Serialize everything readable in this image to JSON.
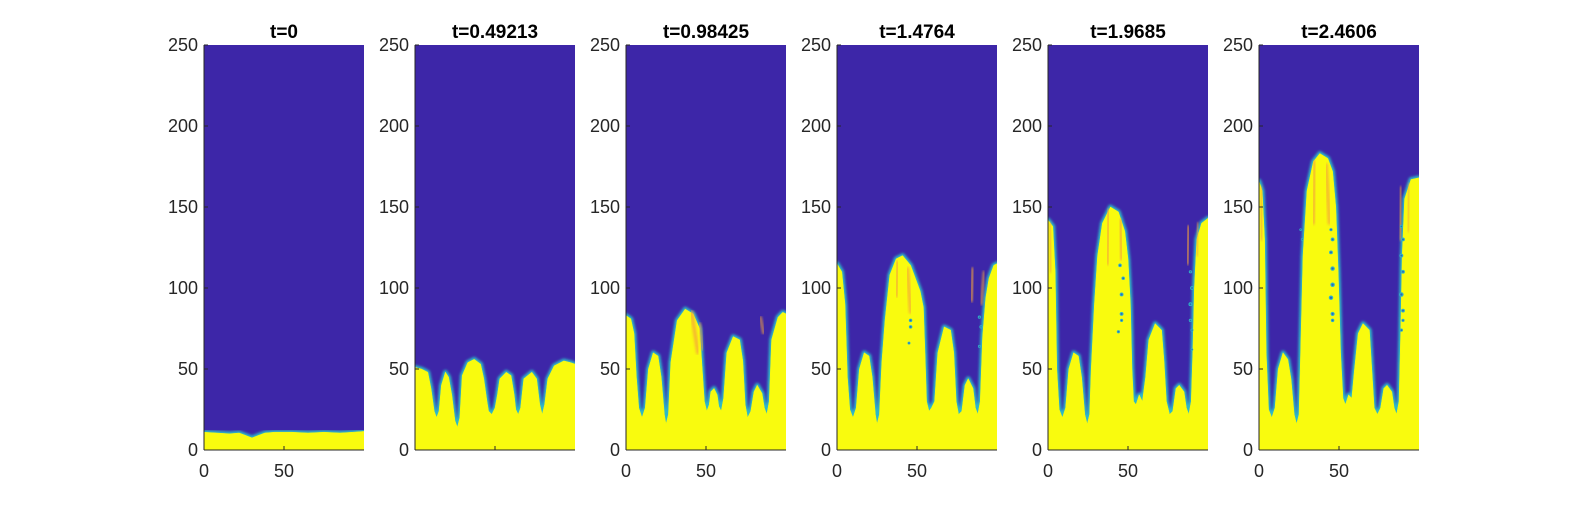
{
  "figure": {
    "colors": {
      "background_fluid": "#3d26a8",
      "dense_fluid": "#f9fb0e",
      "interface": "#2db9c7",
      "inner_streak": "#f5a53a",
      "axis_line": "#262626"
    }
  },
  "chart_data": [
    {
      "type": "heatmap",
      "title": "t=0",
      "xlim": [
        0,
        100
      ],
      "ylim": [
        0,
        250
      ],
      "xticks": [
        0,
        50
      ],
      "yticks": [
        0,
        50,
        100,
        150,
        200,
        250
      ],
      "show_xticklabels": [
        "0",
        "50"
      ],
      "show_yticklabels": [
        "0",
        "50",
        "100",
        "150",
        "200",
        "250"
      ],
      "interface": [
        [
          0,
          11
        ],
        [
          8,
          10.5
        ],
        [
          16,
          10
        ],
        [
          22,
          10.5
        ],
        [
          26,
          9
        ],
        [
          30,
          7.5
        ],
        [
          34,
          9
        ],
        [
          38,
          10.5
        ],
        [
          44,
          11
        ],
        [
          55,
          11
        ],
        [
          65,
          10.5
        ],
        [
          75,
          11
        ],
        [
          85,
          10.5
        ],
        [
          93,
          11
        ],
        [
          100,
          11.5
        ]
      ],
      "fingers": [],
      "drops": []
    },
    {
      "type": "heatmap",
      "title": "t=0.49213",
      "xlim": [
        0,
        100
      ],
      "ylim": [
        0,
        250
      ],
      "xticks": [
        0,
        50
      ],
      "yticks": [
        0,
        50,
        100,
        150,
        200,
        250
      ],
      "show_xticklabels": [],
      "show_yticklabels": [
        "0",
        "50",
        "100",
        "150",
        "200",
        "250"
      ],
      "interface": [
        [
          0,
          51
        ],
        [
          4,
          50
        ],
        [
          8,
          48
        ],
        [
          10,
          38
        ],
        [
          12,
          24
        ],
        [
          13.5,
          20
        ],
        [
          15,
          24
        ],
        [
          16.5,
          40
        ],
        [
          19,
          48
        ],
        [
          21,
          45
        ],
        [
          23,
          34
        ],
        [
          25,
          18
        ],
        [
          26.5,
          14
        ],
        [
          28,
          20
        ],
        [
          29.5,
          46
        ],
        [
          33,
          54
        ],
        [
          37,
          56
        ],
        [
          41,
          53
        ],
        [
          43,
          44
        ],
        [
          45,
          30
        ],
        [
          46,
          24
        ],
        [
          48,
          22
        ],
        [
          50,
          26
        ],
        [
          51.5,
          34
        ],
        [
          53,
          44
        ],
        [
          57,
          48
        ],
        [
          60,
          46
        ],
        [
          62,
          34
        ],
        [
          63,
          25
        ],
        [
          64.5,
          22
        ],
        [
          66,
          26
        ],
        [
          68,
          44
        ],
        [
          73,
          48
        ],
        [
          76,
          44
        ],
        [
          78,
          28
        ],
        [
          79.5,
          22
        ],
        [
          81,
          28
        ],
        [
          83,
          44
        ],
        [
          87,
          52
        ],
        [
          93,
          55
        ],
        [
          97,
          54
        ],
        [
          100,
          53
        ]
      ],
      "fingers": [],
      "drops": []
    },
    {
      "type": "heatmap",
      "title": "t=0.98425",
      "xlim": [
        0,
        100
      ],
      "ylim": [
        0,
        250
      ],
      "xticks": [
        0,
        50
      ],
      "yticks": [
        0,
        50,
        100,
        150,
        200,
        250
      ],
      "show_xticklabels": [
        "0",
        "50"
      ],
      "show_yticklabels": [
        "0",
        "50",
        "100",
        "150",
        "200",
        "250"
      ],
      "interface": [
        [
          0,
          83
        ],
        [
          3,
          81
        ],
        [
          5,
          72
        ],
        [
          6.5,
          45
        ],
        [
          8,
          26
        ],
        [
          10,
          20
        ],
        [
          12,
          26
        ],
        [
          14,
          50
        ],
        [
          17,
          60
        ],
        [
          20,
          58
        ],
        [
          22,
          45
        ],
        [
          24,
          22
        ],
        [
          25,
          16
        ],
        [
          26.5,
          22
        ],
        [
          28,
          54
        ],
        [
          32,
          80
        ],
        [
          37,
          87
        ],
        [
          42,
          84
        ],
        [
          46,
          75
        ],
        [
          47.5,
          52
        ],
        [
          49,
          30
        ],
        [
          50.5,
          24
        ],
        [
          52,
          28
        ],
        [
          53,
          36
        ],
        [
          55,
          38
        ],
        [
          57,
          34
        ],
        [
          58,
          27
        ],
        [
          59.5,
          24
        ],
        [
          61,
          32
        ],
        [
          63,
          60
        ],
        [
          67,
          70
        ],
        [
          71,
          68
        ],
        [
          73,
          55
        ],
        [
          74.5,
          28
        ],
        [
          76,
          20
        ],
        [
          78,
          24
        ],
        [
          80,
          36
        ],
        [
          82,
          40
        ],
        [
          85,
          35
        ],
        [
          86.5,
          26
        ],
        [
          88,
          22
        ],
        [
          89.5,
          30
        ],
        [
          91,
          68
        ],
        [
          95,
          82
        ],
        [
          98,
          85
        ],
        [
          100,
          84
        ]
      ],
      "fingers": [
        [
          41,
          85,
          45,
          60,
          1.8
        ],
        [
          46,
          78,
          48,
          62,
          1.2
        ],
        [
          84,
          82,
          86,
          72,
          1.2
        ]
      ],
      "drops": []
    },
    {
      "type": "heatmap",
      "title": "t=1.4764",
      "xlim": [
        0,
        100
      ],
      "ylim": [
        0,
        250
      ],
      "xticks": [
        0,
        50
      ],
      "yticks": [
        0,
        50,
        100,
        150,
        200,
        250
      ],
      "show_xticklabels": [
        "0",
        "50"
      ],
      "show_yticklabels": [
        "0",
        "50",
        "100",
        "150",
        "200",
        "250"
      ],
      "interface": [
        [
          0,
          115
        ],
        [
          3,
          110
        ],
        [
          5,
          90
        ],
        [
          6.5,
          45
        ],
        [
          8,
          25
        ],
        [
          10,
          20
        ],
        [
          12,
          26
        ],
        [
          14,
          50
        ],
        [
          17,
          60
        ],
        [
          20,
          58
        ],
        [
          22,
          45
        ],
        [
          24,
          22
        ],
        [
          25,
          16
        ],
        [
          26.5,
          22
        ],
        [
          28,
          54
        ],
        [
          30,
          80
        ],
        [
          33,
          108
        ],
        [
          37,
          118
        ],
        [
          41,
          120
        ],
        [
          46,
          114
        ],
        [
          49,
          106
        ],
        [
          52,
          98
        ],
        [
          54,
          88
        ],
        [
          55,
          60
        ],
        [
          56,
          30
        ],
        [
          57.5,
          24
        ],
        [
          59,
          26
        ],
        [
          61,
          30
        ],
        [
          63,
          60
        ],
        [
          67,
          76
        ],
        [
          71,
          74
        ],
        [
          73,
          60
        ],
        [
          74.5,
          30
        ],
        [
          76,
          22
        ],
        [
          78,
          24
        ],
        [
          80,
          40
        ],
        [
          82,
          44
        ],
        [
          85,
          38
        ],
        [
          86.5,
          26
        ],
        [
          88,
          22
        ],
        [
          89.5,
          30
        ],
        [
          91,
          70
        ],
        [
          93,
          94
        ],
        [
          95,
          106
        ],
        [
          98,
          114
        ],
        [
          100,
          115
        ]
      ],
      "fingers": [
        [
          38,
          116,
          37,
          95,
          1.6
        ],
        [
          44,
          112,
          46,
          85,
          1.6
        ],
        [
          85,
          112,
          84,
          92,
          1.4
        ],
        [
          92,
          110,
          90,
          90,
          1.2
        ]
      ],
      "drops": [
        [
          46,
          80,
          1.1
        ],
        [
          46,
          76,
          1.1
        ],
        [
          45,
          66,
          0.9
        ],
        [
          89,
          82,
          1.0
        ],
        [
          90,
          76,
          1.0
        ],
        [
          89,
          64,
          0.9
        ]
      ]
    },
    {
      "type": "heatmap",
      "title": "t=1.9685",
      "xlim": [
        0,
        100
      ],
      "ylim": [
        0,
        250
      ],
      "xticks": [
        0,
        50
      ],
      "yticks": [
        0,
        50,
        100,
        150,
        200,
        250
      ],
      "show_xticklabels": [
        "0",
        "50"
      ],
      "show_yticklabels": [
        "0",
        "50",
        "100",
        "150",
        "200",
        "250"
      ],
      "interface": [
        [
          0,
          142
        ],
        [
          3,
          138
        ],
        [
          4.5,
          110
        ],
        [
          5.5,
          50
        ],
        [
          7,
          25
        ],
        [
          9,
          20
        ],
        [
          11,
          26
        ],
        [
          13,
          50
        ],
        [
          16,
          60
        ],
        [
          19,
          58
        ],
        [
          21,
          45
        ],
        [
          23,
          22
        ],
        [
          24.5,
          16
        ],
        [
          26,
          22
        ],
        [
          27,
          50
        ],
        [
          29,
          90
        ],
        [
          31,
          120
        ],
        [
          34,
          140
        ],
        [
          39,
          150
        ],
        [
          44,
          147
        ],
        [
          48,
          135
        ],
        [
          50,
          118
        ],
        [
          51.5,
          90
        ],
        [
          52.5,
          50
        ],
        [
          53.5,
          30
        ],
        [
          55,
          28
        ],
        [
          57,
          34
        ],
        [
          59,
          30
        ],
        [
          61,
          45
        ],
        [
          63,
          68
        ],
        [
          67,
          78
        ],
        [
          71,
          74
        ],
        [
          72.5,
          55
        ],
        [
          74,
          30
        ],
        [
          76,
          22
        ],
        [
          78,
          24
        ],
        [
          80,
          38
        ],
        [
          82,
          40
        ],
        [
          85,
          36
        ],
        [
          86.5,
          26
        ],
        [
          88,
          22
        ],
        [
          89.5,
          30
        ],
        [
          90.5,
          60
        ],
        [
          91.5,
          100
        ],
        [
          93,
          130
        ],
        [
          96,
          140
        ],
        [
          100,
          143
        ]
      ],
      "fingers": [
        [
          38,
          148,
          37,
          115,
          1.6
        ],
        [
          45,
          142,
          46,
          118,
          1.6
        ],
        [
          1,
          140,
          2,
          110,
          1.2
        ],
        [
          88,
          138,
          87,
          115,
          1.4
        ],
        [
          94,
          140,
          93,
          120,
          1.2
        ]
      ],
      "drops": [
        [
          45,
          114,
          1.1
        ],
        [
          47,
          106,
          1.1
        ],
        [
          46,
          96,
          1.2
        ],
        [
          46,
          84,
          1.2
        ],
        [
          46,
          80,
          1.0
        ],
        [
          44,
          73,
          1.0
        ],
        [
          89,
          110,
          1.0
        ],
        [
          90,
          100,
          1.2
        ],
        [
          89,
          90,
          1.2
        ],
        [
          89,
          80,
          1.0
        ],
        [
          90,
          74,
          0.9
        ],
        [
          90,
          62,
          0.8
        ]
      ]
    },
    {
      "type": "heatmap",
      "title": "t=2.4606",
      "xlim": [
        0,
        100
      ],
      "ylim": [
        0,
        250
      ],
      "xticks": [
        0,
        50
      ],
      "yticks": [
        0,
        50,
        100,
        150,
        200,
        250
      ],
      "show_xticklabels": [
        "0",
        "50"
      ],
      "show_yticklabels": [
        "0",
        "50",
        "100",
        "150",
        "200",
        "250"
      ],
      "interface": [
        [
          0,
          166
        ],
        [
          2,
          160
        ],
        [
          3.5,
          130
        ],
        [
          4.5,
          60
        ],
        [
          6,
          25
        ],
        [
          8,
          20
        ],
        [
          10,
          26
        ],
        [
          12,
          50
        ],
        [
          15,
          60
        ],
        [
          18,
          56
        ],
        [
          20,
          44
        ],
        [
          22,
          22
        ],
        [
          23.5,
          16
        ],
        [
          25,
          22
        ],
        [
          26,
          60
        ],
        [
          27.5,
          120
        ],
        [
          30,
          160
        ],
        [
          34,
          178
        ],
        [
          38,
          183
        ],
        [
          43,
          180
        ],
        [
          46,
          172
        ],
        [
          48,
          150
        ],
        [
          49.5,
          110
        ],
        [
          51,
          60
        ],
        [
          52.5,
          32
        ],
        [
          54,
          28
        ],
        [
          56,
          34
        ],
        [
          58,
          32
        ],
        [
          59.5,
          48
        ],
        [
          62,
          72
        ],
        [
          65,
          78
        ],
        [
          69,
          74
        ],
        [
          70.5,
          50
        ],
        [
          72,
          26
        ],
        [
          74,
          22
        ],
        [
          76,
          26
        ],
        [
          78,
          38
        ],
        [
          80,
          40
        ],
        [
          83,
          36
        ],
        [
          84.5,
          26
        ],
        [
          86,
          22
        ],
        [
          87.5,
          30
        ],
        [
          88.5,
          70
        ],
        [
          89.5,
          120
        ],
        [
          91,
          155
        ],
        [
          95,
          167
        ],
        [
          100,
          168
        ]
      ],
      "fingers": [
        [
          1,
          162,
          2,
          130,
          1.4
        ],
        [
          35,
          178,
          34,
          140,
          1.6
        ],
        [
          42,
          176,
          44,
          140,
          1.6
        ],
        [
          89,
          162,
          88,
          130,
          1.4
        ],
        [
          94,
          164,
          93,
          135,
          1.2
        ]
      ],
      "drops": [
        [
          26,
          136,
          0.8
        ],
        [
          27,
          130,
          0.8
        ],
        [
          45,
          136,
          1.0
        ],
        [
          46,
          130,
          1.2
        ],
        [
          45,
          122,
          1.2
        ],
        [
          46,
          112,
          1.4
        ],
        [
          46,
          102,
          1.4
        ],
        [
          45,
          94,
          1.4
        ],
        [
          46,
          84,
          1.3
        ],
        [
          46,
          80,
          1.1
        ],
        [
          89,
          138,
          1.0
        ],
        [
          90,
          130,
          1.2
        ],
        [
          89,
          120,
          1.2
        ],
        [
          90,
          110,
          1.2
        ],
        [
          89,
          96,
          1.4
        ],
        [
          90,
          86,
          1.2
        ],
        [
          90,
          80,
          1.0
        ],
        [
          89,
          74,
          1.0
        ]
      ]
    }
  ]
}
